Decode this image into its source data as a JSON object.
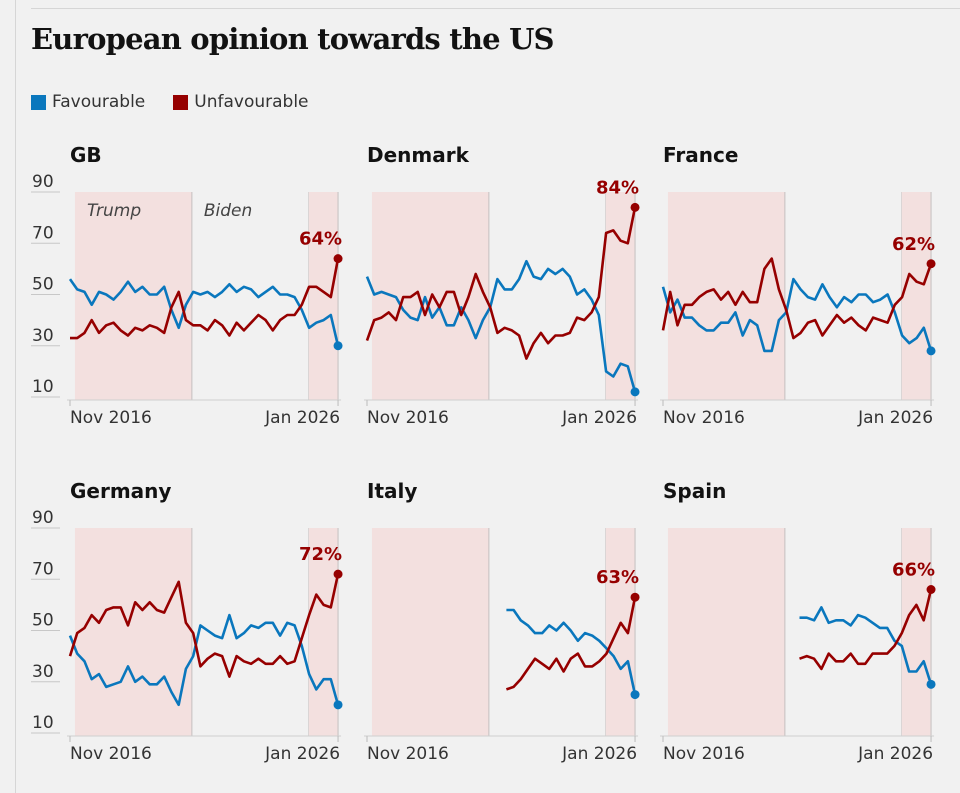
{
  "title": "European opinion towards the US",
  "legend": {
    "favourable": "Favourable",
    "unfavourable": "Unfavourable"
  },
  "colors": {
    "favourable": "#0a77bd",
    "unfavourable": "#960000",
    "shade": "#f3e0df"
  },
  "chart_data": {
    "type": "line",
    "title": "European opinion towards the US",
    "ylabel": "%",
    "ylim": [
      10,
      90
    ],
    "yticks": [
      "90",
      "70",
      "50",
      "30",
      "10"
    ],
    "yticks_values": [
      90,
      70,
      50,
      30,
      10
    ],
    "xticks": [
      "Nov 2016",
      "Jan 2026"
    ],
    "xticks_values": [
      2016.83,
      2026.0
    ],
    "eras": [
      {
        "label": "Trump",
        "start": 2017.0,
        "end": 2021.0,
        "shaded": true
      },
      {
        "label": "Biden",
        "start": 2021.0,
        "end": 2025.0,
        "shaded": false
      },
      {
        "label": "",
        "start": 2025.0,
        "end": 2026.0,
        "shaded": true
      }
    ],
    "panels": [
      {
        "name": "GB",
        "start": 2016.83,
        "end": 2026.0,
        "end_label": "64%",
        "favourable": [
          56,
          52,
          51,
          46,
          51,
          50,
          48,
          51,
          55,
          51,
          53,
          50,
          50,
          53,
          44,
          37,
          46,
          51,
          50,
          51,
          49,
          51,
          54,
          51,
          53,
          52,
          49,
          51,
          53,
          50,
          50,
          49,
          44,
          37,
          39,
          40,
          42,
          30
        ],
        "unfavourable": [
          33,
          33,
          35,
          40,
          35,
          38,
          39,
          36,
          34,
          37,
          36,
          38,
          37,
          35,
          45,
          51,
          40,
          38,
          38,
          36,
          40,
          38,
          34,
          39,
          36,
          39,
          42,
          40,
          36,
          40,
          42,
          42,
          46,
          53,
          53,
          51,
          49,
          64
        ]
      },
      {
        "name": "Denmark",
        "start": 2016.83,
        "end": 2026.0,
        "end_label": "84%",
        "favourable": [
          57,
          50,
          51,
          50,
          49,
          44,
          41,
          40,
          49,
          41,
          45,
          38,
          38,
          45,
          40,
          33,
          40,
          45,
          56,
          52,
          52,
          56,
          63,
          57,
          56,
          60,
          58,
          60,
          57,
          50,
          52,
          48,
          42,
          20,
          18,
          23,
          22,
          12
        ],
        "unfavourable": [
          32,
          40,
          41,
          43,
          40,
          49,
          49,
          51,
          42,
          50,
          45,
          51,
          51,
          42,
          49,
          58,
          51,
          45,
          35,
          37,
          36,
          34,
          25,
          31,
          35,
          31,
          34,
          34,
          35,
          41,
          40,
          43,
          49,
          74,
          75,
          71,
          70,
          84
        ]
      },
      {
        "name": "France",
        "start": 2016.83,
        "end": 2026.0,
        "end_label": "62%",
        "favourable": [
          53,
          43,
          48,
          41,
          41,
          38,
          36,
          36,
          39,
          39,
          43,
          34,
          40,
          38,
          28,
          28,
          40,
          43,
          56,
          52,
          49,
          48,
          54,
          49,
          45,
          49,
          47,
          50,
          50,
          47,
          48,
          50,
          43,
          34,
          31,
          33,
          37,
          28
        ],
        "unfavourable": [
          36,
          51,
          38,
          46,
          46,
          49,
          51,
          52,
          48,
          51,
          46,
          51,
          47,
          47,
          60,
          64,
          52,
          44,
          33,
          35,
          39,
          40,
          34,
          38,
          42,
          39,
          41,
          38,
          36,
          41,
          40,
          39,
          46,
          49,
          58,
          55,
          54,
          62
        ]
      },
      {
        "name": "Germany",
        "start": 2016.83,
        "end": 2026.0,
        "end_label": "72%",
        "favourable": [
          48,
          41,
          38,
          31,
          33,
          28,
          29,
          30,
          36,
          30,
          32,
          29,
          29,
          32,
          26,
          21,
          35,
          40,
          52,
          50,
          48,
          47,
          56,
          47,
          49,
          52,
          51,
          53,
          53,
          48,
          53,
          52,
          44,
          33,
          27,
          31,
          31,
          21
        ],
        "unfavourable": [
          40,
          49,
          51,
          56,
          53,
          58,
          59,
          59,
          52,
          61,
          58,
          61,
          58,
          57,
          63,
          69,
          53,
          49,
          36,
          39,
          41,
          40,
          32,
          40,
          38,
          37,
          39,
          37,
          37,
          40,
          37,
          38,
          47,
          56,
          64,
          60,
          59,
          72
        ]
      },
      {
        "name": "Italy",
        "start": 2021.6,
        "end": 2026.0,
        "end_label": "63%",
        "favourable": [
          58,
          58,
          54,
          52,
          49,
          49,
          52,
          50,
          53,
          50,
          46,
          49,
          48,
          46,
          43,
          40,
          35,
          38,
          25
        ],
        "unfavourable": [
          27,
          28,
          31,
          35,
          39,
          37,
          35,
          39,
          34,
          39,
          41,
          36,
          36,
          38,
          41,
          47,
          53,
          49,
          63
        ]
      },
      {
        "name": "Spain",
        "start": 2021.5,
        "end": 2026.0,
        "end_label": "66%",
        "favourable": [
          55,
          55,
          54,
          59,
          53,
          54,
          54,
          52,
          56,
          55,
          53,
          51,
          51,
          46,
          44,
          34,
          34,
          38,
          29
        ],
        "unfavourable": [
          39,
          40,
          39,
          35,
          41,
          38,
          38,
          41,
          37,
          37,
          41,
          41,
          41,
          44,
          49,
          56,
          60,
          54,
          66
        ]
      }
    ]
  }
}
